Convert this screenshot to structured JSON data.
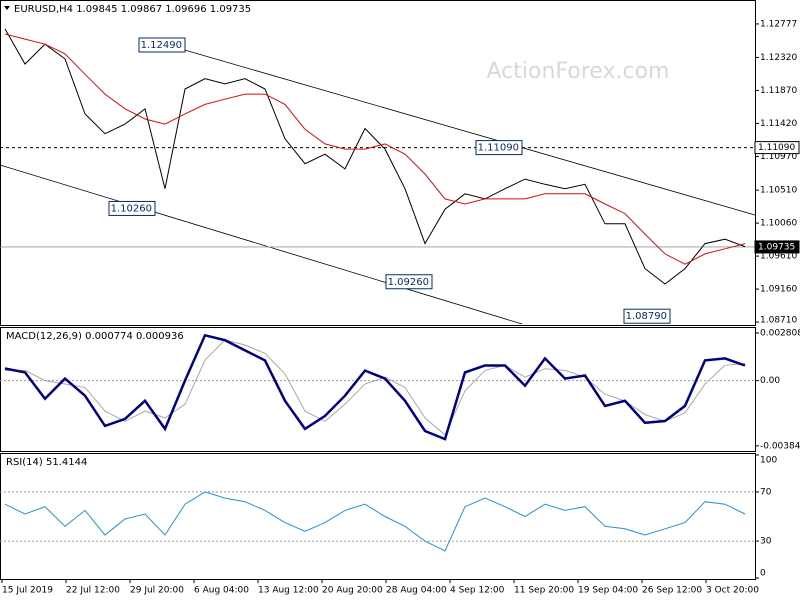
{
  "chart_data": [
    {
      "type": "line",
      "title": "EURUSD,H4  1.09845 1.09867 1.09696 1.09735",
      "watermark": "ActionForex.com",
      "ylim": [
        1.0867,
        1.1309
      ],
      "yticks": [
        1.12777,
        {
          "value": 1.1232,
          "label": "1.12320"
        },
        {
          "value": 1.1187,
          "label": "1.11870"
        },
        {
          "value": 1.1142,
          "label": "1.11420"
        },
        {
          "value": 1.1097,
          "label": "1.10970"
        },
        {
          "value": 1.1051,
          "label": "1.10510"
        },
        {
          "value": 1.1006,
          "label": "1.10060"
        },
        {
          "value": 1.0961,
          "label": "1.09610"
        },
        {
          "value": 1.0916,
          "label": "1.09160"
        },
        {
          "value": 1.0871,
          "label": "1.08710"
        }
      ],
      "levels": [
        {
          "value": 1.1109,
          "label": "1.11090",
          "style": "dashed"
        },
        {
          "value": 1.09735,
          "label": "1.09735",
          "style": "solid"
        }
      ],
      "annotations": [
        {
          "label": "1.12490",
          "value": 1.1249,
          "at": 9
        },
        {
          "label": "1.10260",
          "value": 1.1026,
          "at": 7.5
        },
        {
          "label": "1.09260",
          "value": 1.0926,
          "at": 21.35
        },
        {
          "label": "1.08790",
          "value": 1.0879,
          "at": 33.25
        },
        {
          "label": "1.11090",
          "value": 1.1109,
          "at": 25.85
        }
      ],
      "series": [
        {
          "color": "#000000",
          "width": 1,
          "values": [
            1.1271,
            1.1223,
            1.125,
            1.123,
            1.1155,
            1.1128,
            1.1141,
            1.1162,
            1.1053,
            1.1189,
            1.1203,
            1.1196,
            1.1203,
            1.1189,
            1.1121,
            1.1087,
            1.11,
            1.108,
            1.1135,
            1.1107,
            1.1053,
            1.0978,
            1.1025,
            1.1046,
            1.1039,
            1.1053,
            1.1066,
            1.1059,
            1.1053,
            1.1059,
            1.1005,
            1.1005,
            1.0944,
            1.0923,
            1.0944,
            1.0978,
            1.0984,
            1.0974
          ]
        },
        {
          "color": "#d01010",
          "width": 1,
          "values": [
            1.1264,
            1.1257,
            1.125,
            1.1237,
            1.1209,
            1.1182,
            1.1162,
            1.1148,
            1.1141,
            1.1155,
            1.1168,
            1.1175,
            1.1182,
            1.1182,
            1.1168,
            1.1134,
            1.1114,
            1.1107,
            1.1107,
            1.1114,
            1.11,
            1.1073,
            1.1039,
            1.1032,
            1.1039,
            1.1039,
            1.1039,
            1.1046,
            1.1046,
            1.1046,
            1.1032,
            1.1019,
            1.0991,
            1.0964,
            1.095,
            1.0964,
            1.0971,
            1.0978
          ]
        }
      ]
    },
    {
      "type": "line",
      "title": "MACD(12,26,9) 0.000774 0.000936",
      "ylim": [
        -0.00415,
        0.0031
      ],
      "yticks": [
        0.002808,
        {
          "value": 0,
          "label": "0.00"
        },
        -0.003848
      ],
      "series": [
        {
          "color": "#a8a8a8",
          "width": 1,
          "values": [
            0.0006,
            0.0006,
            0,
            -0.0002,
            -0.0004,
            -0.0018,
            -0.0024,
            -0.0018,
            -0.0022,
            -0.0014,
            0.0012,
            0.0024,
            0.0021,
            0.0016,
            0.0004,
            -0.0018,
            -0.0024,
            -0.0014,
            -0.0002,
            0.0002,
            -0.0004,
            -0.0022,
            -0.0032,
            -0.0006,
            0.0006,
            0.0009,
            0.0002,
            0.0007,
            0.0006,
            0.0002,
            -0.0008,
            -0.0012,
            -0.002,
            -0.0024,
            -0.0019,
            -0.0002,
            0.0009,
            0.001
          ]
        },
        {
          "color": "#000080",
          "width": 2.5,
          "values": [
            0.00071,
            0.00048,
            -0.00107,
            0.00012,
            -0.00089,
            -0.00267,
            -0.00226,
            -0.00119,
            -0.00285,
            0,
            0.00267,
            0.00238,
            0.00178,
            0.00119,
            -0.00119,
            -0.00285,
            -0.00208,
            -0.00089,
            0.00059,
            0.00012,
            -0.00119,
            -0.00297,
            -0.00345,
            0.00048,
            0.00089,
            0.00089,
            -0.0003,
            0.00131,
            0.00012,
            0.0003,
            -0.00149,
            -0.00119,
            -0.00249,
            -0.00238,
            -0.00149,
            0.00119,
            0.00131,
            0.00089
          ]
        }
      ]
    },
    {
      "type": "line",
      "title": "RSI(14) 51.4144",
      "ylim": [
        0,
        100
      ],
      "yticks": [
        100,
        70,
        30,
        0
      ],
      "levels": [
        70,
        30
      ],
      "xlim": [
        -0.25,
        37.5
      ],
      "xticks": [
        {
          "value": -0.15,
          "label": "15 Jul 2019"
        },
        {
          "value": 3.05,
          "label": "22 Jul 12:00"
        },
        {
          "value": 6.25,
          "label": "29 Jul 20:00"
        },
        {
          "value": 9.45,
          "label": "6 Aug 04:00"
        },
        {
          "value": 12.65,
          "label": "13 Aug 12:00"
        },
        {
          "value": 15.85,
          "label": "20 Aug 20:00"
        },
        {
          "value": 19.05,
          "label": "28 Aug 04:00"
        },
        {
          "value": 22.25,
          "label": "4 Sep 12:00"
        },
        {
          "value": 25.45,
          "label": "11 Sep 20:00"
        },
        {
          "value": 28.65,
          "label": "19 Sep 04:00"
        },
        {
          "value": 31.85,
          "label": "26 Sep 12:00"
        },
        {
          "value": 35.05,
          "label": "3 Oct 20:00"
        }
      ],
      "series": [
        {
          "color": "#2a8fd0",
          "width": 1,
          "values": [
            60,
            52,
            58,
            42,
            55,
            35,
            48,
            52,
            35,
            60,
            70,
            65,
            62,
            55,
            45,
            38,
            45,
            55,
            60,
            50,
            42,
            30,
            22,
            58,
            65,
            58,
            50,
            60,
            55,
            58,
            42,
            40,
            35,
            40,
            45,
            62,
            60,
            52
          ]
        }
      ]
    }
  ]
}
